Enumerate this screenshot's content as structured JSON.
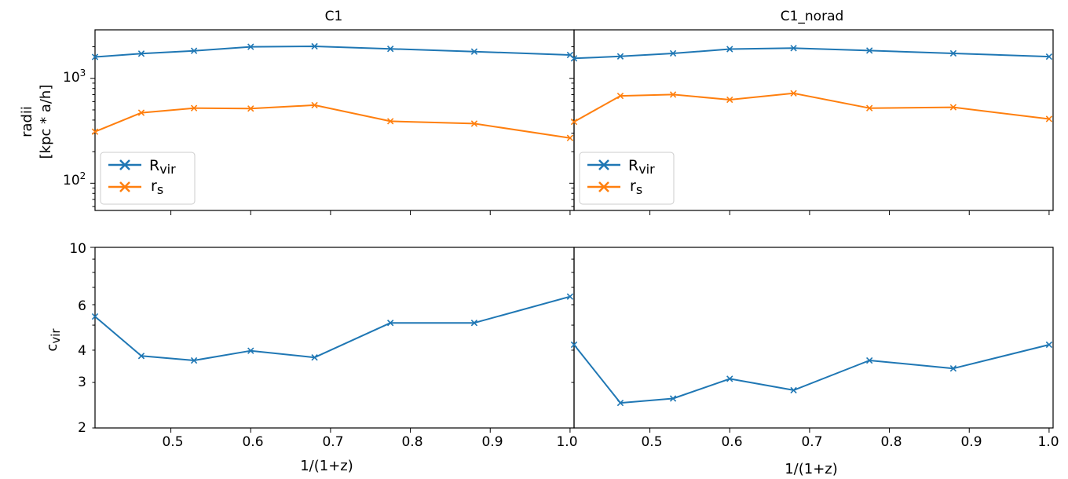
{
  "colors": {
    "blue": "#1f77b4",
    "orange": "#ff7f0e",
    "axis": "#000000"
  },
  "chart_data": [
    {
      "type": "line",
      "panel": "top-left",
      "title": "C1",
      "xlabel": "",
      "ylabel_line1": "radii",
      "ylabel_line2": "[kpc * a/h]",
      "xlim": [
        0.405,
        1.005
      ],
      "ylim": [
        55,
        2900
      ],
      "yscale": "log",
      "yticks": [
        {
          "value": 100,
          "base": "10",
          "exp": "2"
        },
        {
          "value": 1000,
          "base": "10",
          "exp": "3"
        }
      ],
      "x": [
        0.405,
        0.463,
        0.529,
        0.6,
        0.68,
        0.775,
        0.88,
        1.0
      ],
      "series": [
        {
          "name": "R",
          "sub": "vir",
          "color": "#1f77b4",
          "values": [
            1600,
            1720,
            1830,
            2000,
            2020,
            1910,
            1800,
            1670
          ]
        },
        {
          "name": "r",
          "sub": "s",
          "color": "#ff7f0e",
          "values": [
            310,
            470,
            520,
            515,
            555,
            390,
            370,
            270
          ]
        }
      ],
      "legend": "lower-left"
    },
    {
      "type": "line",
      "panel": "top-right",
      "title": "C1_norad",
      "xlabel": "",
      "xlim": [
        0.405,
        1.005
      ],
      "ylim": [
        55,
        2900
      ],
      "yscale": "log",
      "x": [
        0.405,
        0.463,
        0.529,
        0.6,
        0.68,
        0.775,
        0.88,
        1.0
      ],
      "series": [
        {
          "name": "R",
          "sub": "vir",
          "color": "#1f77b4",
          "values": [
            1550,
            1620,
            1730,
            1900,
            1940,
            1840,
            1730,
            1610
          ]
        },
        {
          "name": "r",
          "sub": "s",
          "color": "#ff7f0e",
          "values": [
            385,
            680,
            700,
            625,
            720,
            520,
            530,
            410
          ]
        }
      ],
      "legend": "lower-left"
    },
    {
      "type": "line",
      "panel": "bottom-left",
      "title": "",
      "xlabel": "1/(1+z)",
      "ylabel": "c",
      "ylabel_sub": "vir",
      "xlim": [
        0.405,
        1.005
      ],
      "ylim": [
        2,
        10
      ],
      "yscale": "log",
      "xticks": [
        "0.5",
        "0.6",
        "0.7",
        "0.8",
        "0.9",
        "1.0"
      ],
      "yticks": [
        "2",
        "3",
        "4",
        "6",
        "10"
      ],
      "x": [
        0.405,
        0.463,
        0.529,
        0.6,
        0.68,
        0.775,
        0.88,
        1.0
      ],
      "series": [
        {
          "name": "c_vir",
          "color": "#1f77b4",
          "values": [
            5.4,
            3.8,
            3.65,
            3.98,
            3.75,
            5.1,
            5.1,
            6.45
          ]
        }
      ]
    },
    {
      "type": "line",
      "panel": "bottom-right",
      "title": "",
      "xlabel": "1/(1+z)",
      "xlim": [
        0.405,
        1.005
      ],
      "ylim": [
        2,
        10
      ],
      "yscale": "log",
      "xticks": [
        "0.5",
        "0.6",
        "0.7",
        "0.8",
        "0.9",
        "1.0"
      ],
      "x": [
        0.405,
        0.463,
        0.529,
        0.6,
        0.68,
        0.775,
        0.88,
        1.0
      ],
      "series": [
        {
          "name": "c_vir",
          "color": "#1f77b4",
          "values": [
            4.2,
            2.5,
            2.6,
            3.1,
            2.8,
            3.65,
            3.4,
            4.2
          ]
        }
      ]
    }
  ]
}
